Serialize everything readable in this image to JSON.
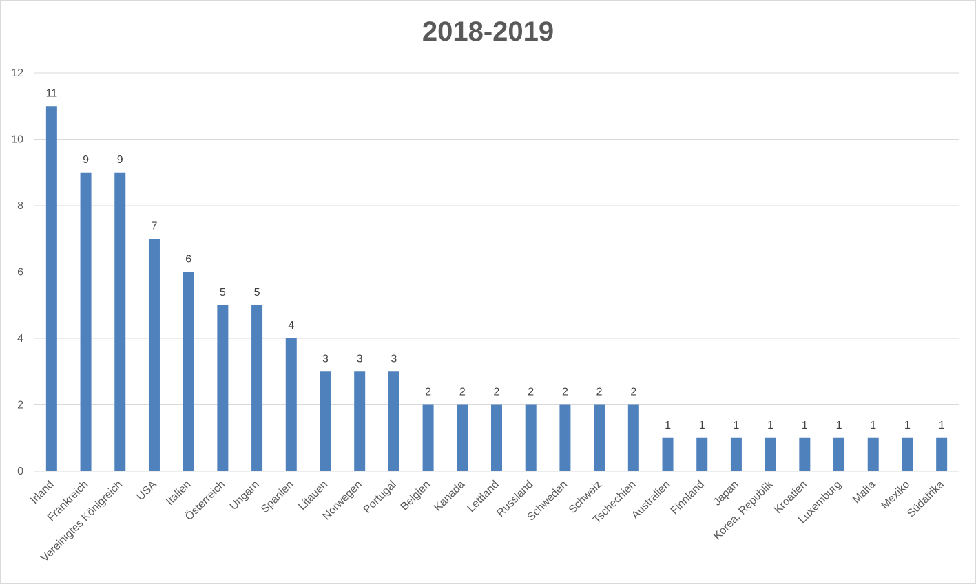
{
  "chart_data": {
    "type": "bar",
    "title": "2018-2019",
    "xlabel": "",
    "ylabel": "",
    "ylim": [
      0,
      12
    ],
    "ytick_step": 2,
    "grid": true,
    "legend": "none",
    "bar_color": "#4F81BD",
    "data_labels": true,
    "categories": [
      "Irland",
      "Frankreich",
      "Vereinigtes Königreich",
      "USA",
      "Italien",
      "Österreich",
      "Ungarn",
      "Spanien",
      "Litauen",
      "Norwegen",
      "Portugal",
      "Belgien",
      "Kanada",
      "Lettland",
      "Russland",
      "Schweden",
      "Schweiz",
      "Tschechien",
      "Australien",
      "Finnland",
      "Japan",
      "Korea, Republik",
      "Kroatien",
      "Luxemburg",
      "Malta",
      "Mexiko",
      "Südafrika"
    ],
    "values": [
      11,
      9,
      9,
      7,
      6,
      5,
      5,
      4,
      3,
      3,
      3,
      2,
      2,
      2,
      2,
      2,
      2,
      2,
      1,
      1,
      1,
      1,
      1,
      1,
      1,
      1,
      1
    ]
  }
}
